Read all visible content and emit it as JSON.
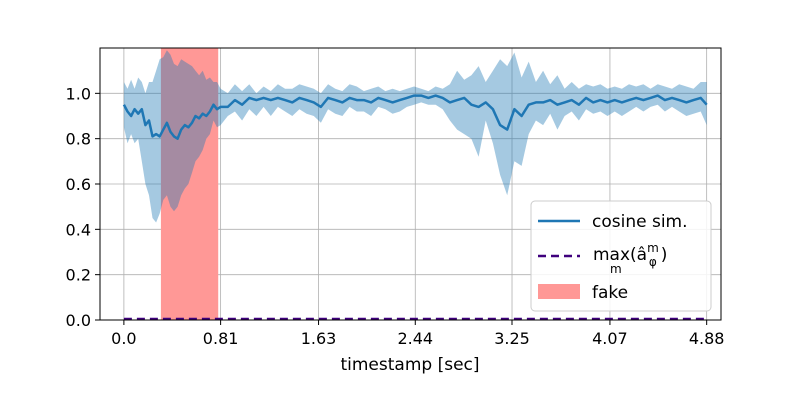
{
  "chart_data": {
    "type": "line",
    "xlabel": "timestamp [sec]",
    "ylabel": "",
    "xlim": [
      -0.2,
      5.0
    ],
    "ylim": [
      0.0,
      1.2
    ],
    "xticks": [
      0.0,
      0.81,
      1.63,
      2.44,
      3.25,
      4.07,
      4.88
    ],
    "xtick_labels": [
      "0.0",
      "0.81",
      "1.63",
      "2.44",
      "3.25",
      "4.07",
      "4.88"
    ],
    "yticks": [
      0.0,
      0.2,
      0.4,
      0.6,
      0.8,
      1.0
    ],
    "ytick_labels": [
      "0.0",
      "0.2",
      "0.4",
      "0.6",
      "0.8",
      "1.0"
    ],
    "grid": true,
    "legend_position": "lower-right",
    "colors": {
      "cosine": "#1f77b4",
      "band": "#a6c8e3",
      "max": "#3f007d",
      "fake": "#ff9896"
    },
    "fake_region": {
      "name": "fake",
      "x_start": 0.31,
      "x_end": 0.79
    },
    "series": [
      {
        "name": "cosine sim.",
        "style": "solid",
        "x": [
          0.0,
          0.03,
          0.06,
          0.09,
          0.12,
          0.15,
          0.18,
          0.21,
          0.24,
          0.27,
          0.3,
          0.33,
          0.36,
          0.39,
          0.42,
          0.45,
          0.48,
          0.51,
          0.54,
          0.57,
          0.6,
          0.63,
          0.66,
          0.69,
          0.72,
          0.75,
          0.78,
          0.81,
          0.87,
          0.93,
          0.99,
          1.05,
          1.11,
          1.17,
          1.23,
          1.29,
          1.35,
          1.41,
          1.47,
          1.53,
          1.59,
          1.65,
          1.71,
          1.77,
          1.83,
          1.89,
          1.95,
          2.01,
          2.07,
          2.13,
          2.19,
          2.25,
          2.31,
          2.37,
          2.43,
          2.49,
          2.55,
          2.61,
          2.67,
          2.73,
          2.79,
          2.85,
          2.91,
          2.97,
          3.03,
          3.09,
          3.15,
          3.21,
          3.27,
          3.33,
          3.39,
          3.45,
          3.51,
          3.57,
          3.63,
          3.69,
          3.75,
          3.81,
          3.87,
          3.93,
          3.99,
          4.05,
          4.11,
          4.17,
          4.23,
          4.29,
          4.35,
          4.41,
          4.47,
          4.53,
          4.59,
          4.65,
          4.71,
          4.77,
          4.83,
          4.88
        ],
        "y": [
          0.95,
          0.92,
          0.9,
          0.93,
          0.91,
          0.93,
          0.86,
          0.88,
          0.81,
          0.82,
          0.81,
          0.84,
          0.87,
          0.83,
          0.81,
          0.8,
          0.84,
          0.86,
          0.85,
          0.87,
          0.9,
          0.89,
          0.91,
          0.9,
          0.92,
          0.95,
          0.93,
          0.94,
          0.94,
          0.97,
          0.95,
          0.98,
          0.97,
          0.98,
          0.97,
          0.98,
          0.97,
          0.96,
          0.98,
          0.97,
          0.96,
          0.94,
          0.98,
          0.97,
          0.96,
          0.98,
          0.97,
          0.97,
          0.96,
          0.98,
          0.97,
          0.96,
          0.97,
          0.98,
          0.99,
          0.99,
          0.98,
          0.99,
          0.98,
          0.96,
          0.97,
          0.98,
          0.95,
          0.94,
          0.96,
          0.93,
          0.86,
          0.84,
          0.93,
          0.9,
          0.95,
          0.96,
          0.96,
          0.97,
          0.95,
          0.96,
          0.97,
          0.95,
          0.98,
          0.96,
          0.97,
          0.96,
          0.97,
          0.96,
          0.97,
          0.98,
          0.97,
          0.98,
          0.99,
          0.97,
          0.98,
          0.97,
          0.96,
          0.97,
          0.98,
          0.95
        ],
        "upper": [
          1.05,
          1.02,
          1.06,
          1.02,
          1.07,
          1.05,
          1.0,
          1.05,
          1.05,
          1.1,
          1.15,
          1.16,
          1.19,
          1.17,
          1.13,
          1.12,
          1.15,
          1.14,
          1.13,
          1.12,
          1.1,
          1.08,
          1.1,
          1.06,
          1.07,
          1.05,
          1.05,
          1.02,
          1.0,
          1.04,
          1.01,
          1.04,
          1.0,
          1.03,
          1.01,
          1.04,
          1.02,
          1.02,
          1.04,
          1.03,
          1.02,
          1.0,
          1.04,
          1.02,
          1.01,
          1.04,
          1.03,
          1.01,
          1.02,
          1.03,
          1.01,
          1.02,
          1.01,
          1.02,
          1.03,
          1.02,
          1.01,
          1.03,
          1.02,
          1.04,
          1.1,
          1.06,
          1.08,
          1.12,
          1.05,
          1.1,
          1.15,
          1.12,
          1.18,
          1.07,
          1.14,
          1.05,
          1.1,
          1.04,
          1.08,
          1.02,
          1.05,
          1.02,
          1.04,
          1.03,
          1.04,
          1.02,
          1.03,
          1.02,
          1.04,
          1.03,
          1.04,
          1.02,
          1.04,
          1.03,
          1.02,
          1.04,
          1.03,
          1.02,
          1.05,
          1.05
        ],
        "lower": [
          0.85,
          0.78,
          0.82,
          0.78,
          0.8,
          0.7,
          0.6,
          0.55,
          0.45,
          0.43,
          0.47,
          0.53,
          0.55,
          0.5,
          0.48,
          0.5,
          0.55,
          0.58,
          0.6,
          0.65,
          0.7,
          0.72,
          0.75,
          0.8,
          0.82,
          0.88,
          0.85,
          0.86,
          0.9,
          0.92,
          0.88,
          0.93,
          0.9,
          0.94,
          0.9,
          0.94,
          0.92,
          0.9,
          0.93,
          0.91,
          0.9,
          0.87,
          0.93,
          0.91,
          0.9,
          0.94,
          0.92,
          0.92,
          0.9,
          0.94,
          0.93,
          0.91,
          0.92,
          0.94,
          0.95,
          0.96,
          0.95,
          0.95,
          0.93,
          0.88,
          0.84,
          0.82,
          0.8,
          0.72,
          0.88,
          0.78,
          0.64,
          0.55,
          0.7,
          0.68,
          0.82,
          0.88,
          0.86,
          0.91,
          0.84,
          0.9,
          0.92,
          0.88,
          0.93,
          0.91,
          0.92,
          0.9,
          0.92,
          0.9,
          0.92,
          0.94,
          0.92,
          0.94,
          0.95,
          0.92,
          0.94,
          0.92,
          0.9,
          0.91,
          0.92,
          0.86
        ]
      },
      {
        "name": "max",
        "legend_sub": "m",
        "legend_tail": "(â",
        "legend_sup": "m",
        "legend_subscript2": "φ",
        "legend_close": ")",
        "style": "dashed",
        "x": [
          0.0,
          4.88
        ],
        "y": [
          0.0,
          0.0
        ]
      }
    ]
  }
}
